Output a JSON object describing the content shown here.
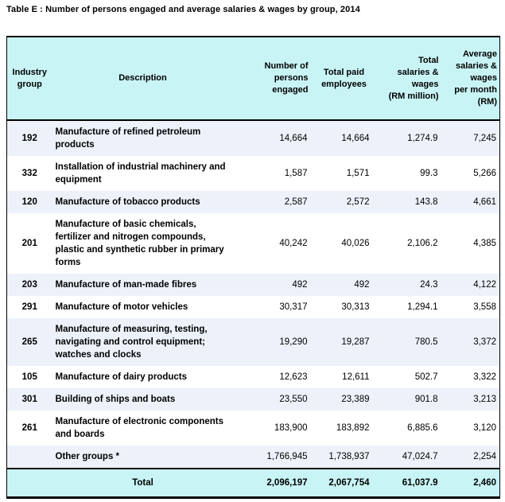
{
  "title": "Table E : Number of persons engaged and average salaries & wages by group, 2014",
  "colors": {
    "header_bg": "#c9f4f5",
    "row_alt_bg": "#edf2fa",
    "row_bg": "#ffffff",
    "border": "#000000",
    "text": "#000000"
  },
  "table": {
    "headers": {
      "industry_group": "Industry\ngroup",
      "description": "Description",
      "persons_engaged": "Number of\npersons\nengaged",
      "paid_employees": "Total paid\nemployees",
      "total_salaries": "Total\nsalaries &\nwages\n(RM million)",
      "avg_salaries": "Average\nsalaries &\nwages\nper month\n(RM)"
    },
    "rows": [
      {
        "code": "192",
        "description": "Manufacture of refined petroleum products",
        "persons": "14,664",
        "paid": "14,664",
        "salaries": "1,274.9",
        "avg": "7,245"
      },
      {
        "code": "332",
        "description": "Installation of industrial machinery and equipment",
        "persons": "1,587",
        "paid": "1,571",
        "salaries": "99.3",
        "avg": "5,266"
      },
      {
        "code": "120",
        "description": "Manufacture of tobacco products",
        "persons": "2,587",
        "paid": "2,572",
        "salaries": "143.8",
        "avg": "4,661"
      },
      {
        "code": "201",
        "description": "Manufacture of basic chemicals, fertilizer and nitrogen compounds, plastic and synthetic rubber in primary forms",
        "persons": "40,242",
        "paid": "40,026",
        "salaries": "2,106.2",
        "avg": "4,385"
      },
      {
        "code": "203",
        "description": "Manufacture of man-made fibres",
        "persons": "492",
        "paid": "492",
        "salaries": "24.3",
        "avg": "4,122"
      },
      {
        "code": "291",
        "description": "Manufacture of motor vehicles",
        "persons": "30,317",
        "paid": "30,313",
        "salaries": "1,294.1",
        "avg": "3,558"
      },
      {
        "code": "265",
        "description": "Manufacture of measuring, testing, navigating and control equipment; watches and clocks",
        "persons": "19,290",
        "paid": "19,287",
        "salaries": "780.5",
        "avg": "3,372"
      },
      {
        "code": "105",
        "description": "Manufacture of dairy products",
        "persons": "12,623",
        "paid": "12,611",
        "salaries": "502.7",
        "avg": "3,322"
      },
      {
        "code": "301",
        "description": "Building of ships and boats",
        "persons": "23,550",
        "paid": "23,389",
        "salaries": "901.8",
        "avg": "3,213"
      },
      {
        "code": "261",
        "description": "Manufacture of electronic components and boards",
        "persons": "183,900",
        "paid": "183,892",
        "salaries": "6,885.6",
        "avg": "3,120"
      },
      {
        "code": "",
        "description": "Other groups *",
        "persons": "1,766,945",
        "paid": "1,738,937",
        "salaries": "47,024.7",
        "avg": "2,254"
      }
    ],
    "total": {
      "label": "Total",
      "persons": "2,096,197",
      "paid": "2,067,754",
      "salaries": "61,037.9",
      "avg": "2,460"
    }
  }
}
